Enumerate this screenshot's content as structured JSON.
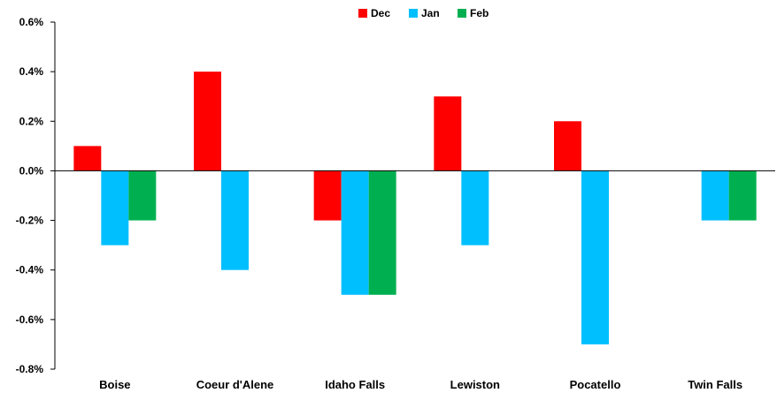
{
  "chart_data": {
    "type": "bar",
    "categories": [
      "Boise",
      "Coeur d'Alene",
      "Idaho Falls",
      "Lewiston",
      "Pocatello",
      "Twin Falls"
    ],
    "series": [
      {
        "name": "Dec",
        "color": "#ff0000",
        "values": [
          0.1,
          0.4,
          -0.2,
          0.3,
          0.2,
          0.0
        ]
      },
      {
        "name": "Jan",
        "color": "#00bfff",
        "values": [
          -0.3,
          -0.4,
          -0.5,
          -0.3,
          -0.7,
          -0.2
        ]
      },
      {
        "name": "Feb",
        "color": "#00b050",
        "values": [
          -0.2,
          0.0,
          -0.5,
          0.0,
          0.0,
          -0.2
        ]
      }
    ],
    "ylim": [
      -0.8,
      0.6
    ],
    "yticks": [
      0.6,
      0.4,
      0.2,
      0.0,
      -0.2,
      -0.4,
      -0.6,
      -0.8
    ],
    "ytick_labels": [
      "0.6%",
      "0.4%",
      "0.2%",
      "0.0%",
      "-0.2%",
      "-0.4%",
      "-0.6%",
      "-0.8%"
    ],
    "title": "",
    "xlabel": "",
    "ylabel": "",
    "legend_position": "top-center",
    "grid": false
  }
}
